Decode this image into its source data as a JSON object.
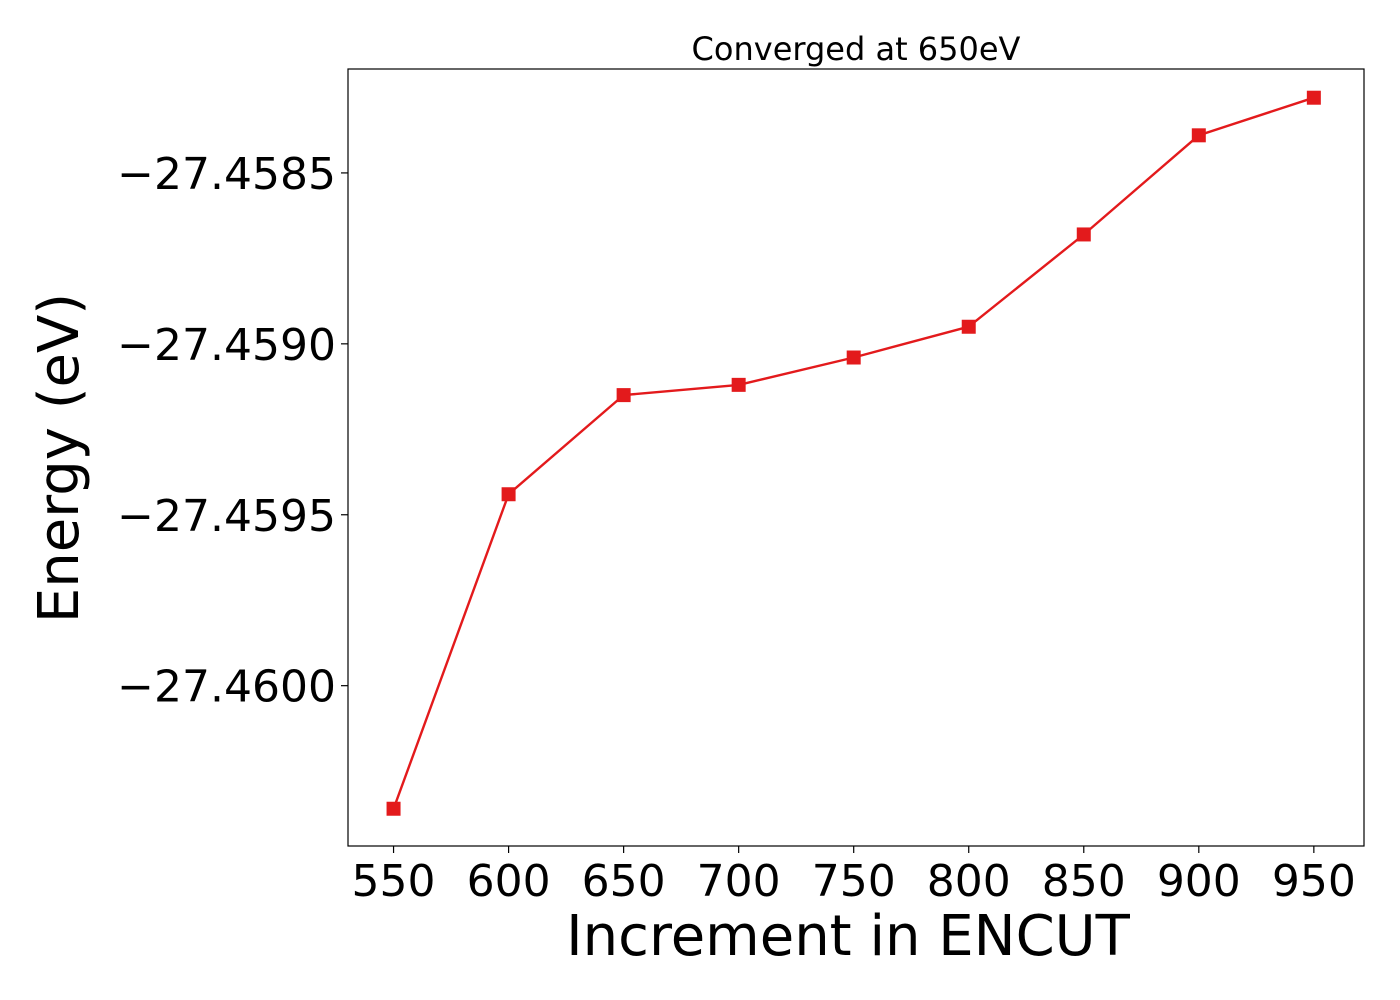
{
  "chart_data": {
    "type": "line",
    "title": "Converged at 650eV",
    "xlabel": "Increment in ENCUT",
    "ylabel": "Energy (eV)",
    "x": [
      550,
      600,
      650,
      700,
      750,
      800,
      850,
      900,
      950
    ],
    "series": [
      {
        "values": [
          -27.46036,
          -27.45944,
          -27.45915,
          -27.45912,
          -27.45904,
          -27.45895,
          -27.45868,
          -27.45839,
          -27.45828
        ],
        "color": "#e31a1c",
        "marker": "square"
      }
    ],
    "x_ticks": [
      550,
      600,
      650,
      700,
      750,
      800,
      850,
      900,
      950
    ],
    "x_tick_labels": [
      "550",
      "600",
      "650",
      "700",
      "750",
      "800",
      "850",
      "900",
      "950"
    ],
    "y_ticks": [
      -27.4585,
      -27.459,
      -27.4595,
      -27.46
    ],
    "y_tick_labels": [
      "−27.4585",
      "−27.4590",
      "−27.4595",
      "−27.4600"
    ],
    "xlim": [
      530.2,
      971.8
    ],
    "ylim": [
      -27.460469,
      -27.458196
    ],
    "grid": false,
    "legend": "none"
  }
}
